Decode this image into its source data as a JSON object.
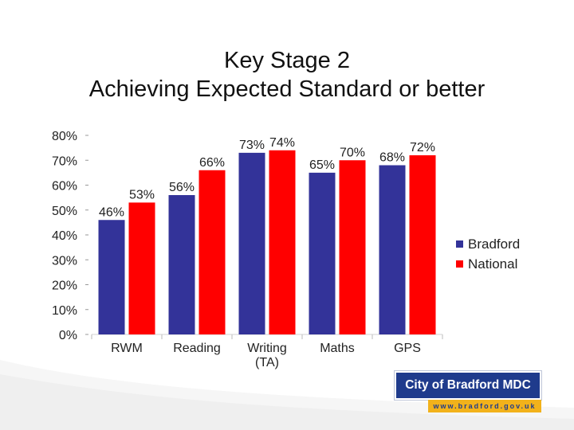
{
  "title": {
    "line1": "Key Stage 2",
    "line2": "Achieving Expected Standard or better"
  },
  "legend": [
    {
      "label": "Bradford",
      "color": "#333399"
    },
    {
      "label": "National",
      "color": "#ff0000"
    }
  ],
  "logo": {
    "name": "City of Bradford MDC",
    "url": "www.bradford.gov.uk",
    "primary_color": "#1f3b8c",
    "accent_color": "#f2b21b"
  },
  "chart_data": {
    "type": "bar",
    "categories": [
      [
        "RWM"
      ],
      [
        "Reading"
      ],
      [
        "Writing",
        "(TA)"
      ],
      [
        "Maths"
      ],
      [
        "GPS"
      ]
    ],
    "series": [
      {
        "name": "Bradford",
        "color": "#333399",
        "values": [
          46,
          56,
          73,
          65,
          68
        ],
        "labels": [
          "46%",
          "56%",
          "73%",
          "65%",
          "68%"
        ]
      },
      {
        "name": "National",
        "color": "#ff0000",
        "values": [
          53,
          66,
          74,
          70,
          72
        ],
        "labels": [
          "53%",
          "66%",
          "74%",
          "70%",
          "72%"
        ]
      }
    ],
    "ylim": [
      0,
      80
    ],
    "yticks": [
      0,
      10,
      20,
      30,
      40,
      50,
      60,
      70,
      80
    ],
    "ytick_labels": [
      "0%",
      "10%",
      "20%",
      "30%",
      "40%",
      "50%",
      "60%",
      "70%",
      "80%"
    ],
    "xlabel": "",
    "ylabel": "",
    "legend_position": "right",
    "grid": false
  }
}
